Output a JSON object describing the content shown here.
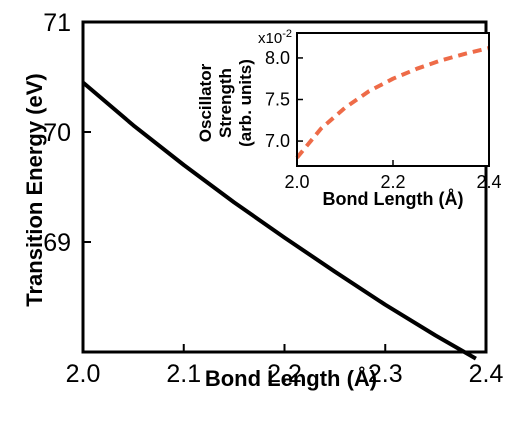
{
  "chart_data": [
    {
      "type": "line",
      "title": "",
      "xlabel": "Bond Length (Å)",
      "ylabel": "Transition Energy (eV)",
      "xlim": [
        2.0,
        2.4
      ],
      "ylim": [
        68.0,
        71.0
      ],
      "x_ticks": [
        "2.0",
        "2.1",
        "2.2",
        "2.3",
        "2.4"
      ],
      "y_ticks": [
        "69",
        "70",
        "71"
      ],
      "series": [
        {
          "color": "#000000",
          "style": "solid",
          "x": [
            2.0,
            2.05,
            2.1,
            2.15,
            2.2,
            2.25,
            2.3,
            2.35,
            2.39
          ],
          "y": [
            70.45,
            70.06,
            69.7,
            69.36,
            69.04,
            68.73,
            68.43,
            68.15,
            67.94
          ]
        }
      ]
    },
    {
      "type": "line",
      "title": "",
      "xlabel": "Bond Length (Å)",
      "ylabel_lines": [
        "Oscillator",
        "Strength",
        "(arb. units)"
      ],
      "multiplier": "x10",
      "multiplier_exp": "-2",
      "xlim": [
        2.0,
        2.4
      ],
      "ylim": [
        6.7,
        8.3
      ],
      "x_ticks": [
        "2.0",
        "2.2",
        "2.4"
      ],
      "y_ticks": [
        "7.0",
        "7.5",
        "8.0"
      ],
      "series": [
        {
          "color": "#ee6b48",
          "style": "dashed",
          "x": [
            2.0,
            2.05,
            2.1,
            2.15,
            2.2,
            2.25,
            2.3,
            2.35,
            2.4
          ],
          "y": [
            6.8,
            7.15,
            7.4,
            7.6,
            7.75,
            7.87,
            7.97,
            8.05,
            8.12
          ]
        }
      ]
    }
  ]
}
